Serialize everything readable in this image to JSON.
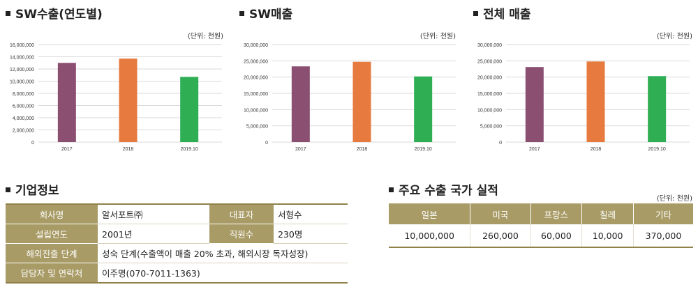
{
  "sections": {
    "sw_export_title": "SW수출(연도별)",
    "sw_sales_title": "SW매출",
    "total_sales_title": "전체 매출",
    "company_info_title": "기업정보",
    "export_title": "주요 수출 국가 실적"
  },
  "units": {
    "chart1": "(단위: 천원)",
    "chart2": "(단위: 천원)",
    "chart3": "(단위: 천원)",
    "export": "(단위: 천원)"
  },
  "colors": {
    "bar_2017": "#8b4f72",
    "bar_2018": "#e67a3f",
    "bar_2019": "#2fae54",
    "table_header": "#a89b66"
  },
  "chart_data": [
    {
      "type": "bar",
      "title": "SW수출(연도별)",
      "categories": [
        "2017",
        "2018",
        "2019.10"
      ],
      "values": [
        13000000,
        13700000,
        10700000
      ],
      "ylim": [
        0,
        16000000
      ],
      "yticks": [
        "0",
        "2,000,000",
        "4,000,000",
        "6,000,000",
        "8,000,000",
        "10,000,000",
        "12,000,000",
        "14,000,000",
        "16,000,000"
      ],
      "grid": true
    },
    {
      "type": "bar",
      "title": "SW매출",
      "categories": [
        "2017",
        "2018",
        "2019.10"
      ],
      "values": [
        23300000,
        24700000,
        20200000
      ],
      "ylim": [
        0,
        30000000
      ],
      "yticks": [
        "0",
        "5,000,000",
        "10,000,000",
        "15,000,000",
        "20,000,000",
        "25,000,000",
        "30,000,000"
      ],
      "grid": true
    },
    {
      "type": "bar",
      "title": "전체 매출",
      "categories": [
        "2017",
        "2018",
        "2019.10"
      ],
      "values": [
        23100000,
        24800000,
        20300000
      ],
      "ylim": [
        0,
        30000000
      ],
      "yticks": [
        "0",
        "5,000,000",
        "10,000,000",
        "15,000,000",
        "20,000,000",
        "25,000,000",
        "30,000,000"
      ],
      "grid": true
    }
  ],
  "company": {
    "name_label": "회사명",
    "name_value": "알서포트㈜",
    "ceo_label": "대표자",
    "ceo_value": "서형수",
    "founded_label": "설립연도",
    "founded_value": "2001년",
    "employees_label": "직원수",
    "employees_value": "230명",
    "stage_label": "해외진출 단계",
    "stage_value": "성숙 단계(수출액이 매출 20% 초과, 해외시장 독자성장)",
    "contact_label": "담당자 및 연락처",
    "contact_value": "이주명(070-7011-1363)"
  },
  "export": {
    "headers": [
      "일본",
      "미국",
      "프랑스",
      "칠레",
      "기타"
    ],
    "values": [
      "10,000,000",
      "260,000",
      "60,000",
      "10,000",
      "370,000"
    ]
  }
}
